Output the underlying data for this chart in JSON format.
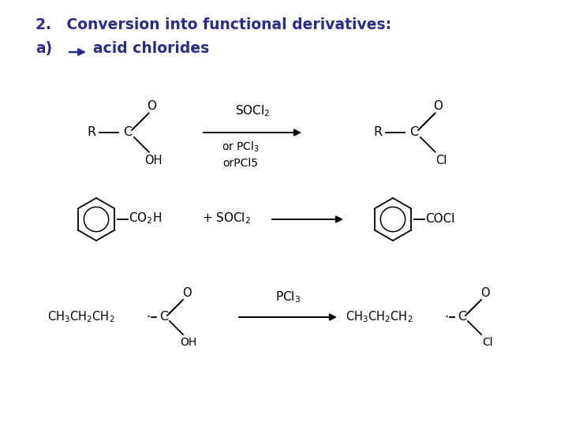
{
  "bg_color": "#ffffff",
  "blue": "#2b2b8f",
  "black": "#000000",
  "figsize": [
    7.2,
    5.4
  ],
  "dpi": 100,
  "title1": "2.   Conversion into functional derivatives:",
  "title2a": "a)",
  "title2b": "  acid chlorides"
}
